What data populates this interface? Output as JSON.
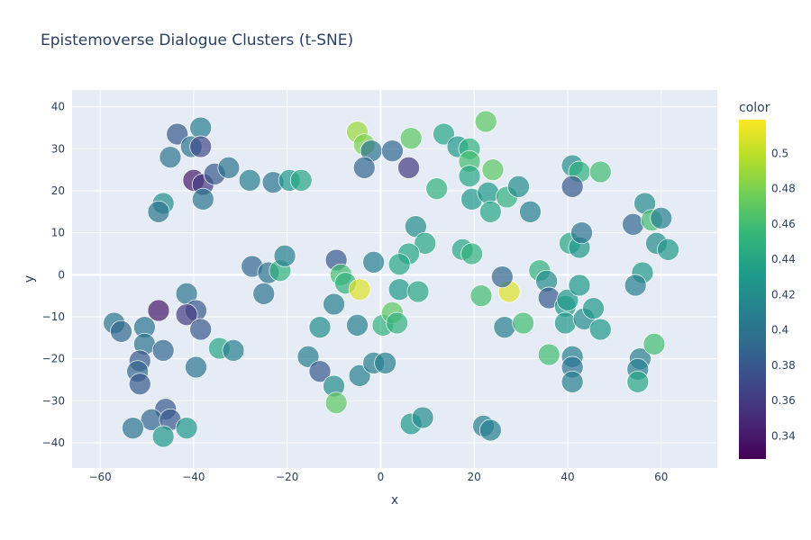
{
  "chart_data": {
    "type": "scatter",
    "title": "Epistemoverse Dialogue Clusters (t-SNE)",
    "xlabel": "x",
    "ylabel": "y",
    "xlim": [
      -66,
      72
    ],
    "ylim": [
      -46,
      44
    ],
    "x_ticks": [
      -60,
      -40,
      -20,
      0,
      20,
      40,
      60
    ],
    "x_tick_labels": [
      "−60",
      "−40",
      "−20",
      "0",
      "20",
      "40",
      "60"
    ],
    "y_ticks": [
      -40,
      -30,
      -20,
      -10,
      0,
      10,
      20,
      30,
      40
    ],
    "y_tick_labels": [
      "−40",
      "−30",
      "−20",
      "−10",
      "0",
      "10",
      "20",
      "30",
      "40"
    ],
    "grid": true,
    "colorscale": "Viridis",
    "colorbar": {
      "title": "color",
      "range": [
        0.327,
        0.519
      ],
      "ticks": [
        0.34,
        0.36,
        0.38,
        0.4,
        0.42,
        0.44,
        0.46,
        0.48,
        0.5
      ],
      "tick_labels": [
        "0.34",
        "0.36",
        "0.38",
        "0.4",
        "0.42",
        "0.44",
        "0.46",
        "0.48",
        "0.5"
      ]
    },
    "points": [
      {
        "x": -43.5,
        "y": 33.5,
        "c": 0.38
      },
      {
        "x": -40.5,
        "y": 30.5,
        "c": 0.4
      },
      {
        "x": -38.5,
        "y": 35,
        "c": 0.41
      },
      {
        "x": -38.5,
        "y": 30.5,
        "c": 0.37
      },
      {
        "x": -45,
        "y": 28,
        "c": 0.4
      },
      {
        "x": -40,
        "y": 22.5,
        "c": 0.34
      },
      {
        "x": -38,
        "y": 21.5,
        "c": 0.36
      },
      {
        "x": -35.5,
        "y": 24,
        "c": 0.38
      },
      {
        "x": -32.5,
        "y": 25.5,
        "c": 0.4
      },
      {
        "x": -38,
        "y": 18,
        "c": 0.4
      },
      {
        "x": -46.5,
        "y": 17,
        "c": 0.42
      },
      {
        "x": -47.5,
        "y": 15,
        "c": 0.4
      },
      {
        "x": -28,
        "y": 22.5,
        "c": 0.41
      },
      {
        "x": -23,
        "y": 22,
        "c": 0.4
      },
      {
        "x": -19.5,
        "y": 22.5,
        "c": 0.43
      },
      {
        "x": -17,
        "y": 22.5,
        "c": 0.44
      },
      {
        "x": -27.5,
        "y": 2,
        "c": 0.39
      },
      {
        "x": -24,
        "y": 0.5,
        "c": 0.4
      },
      {
        "x": -21.5,
        "y": 1,
        "c": 0.45
      },
      {
        "x": -20.5,
        "y": 4.5,
        "c": 0.41
      },
      {
        "x": -25,
        "y": -4.5,
        "c": 0.4
      },
      {
        "x": -47.5,
        "y": -8.5,
        "c": 0.34
      },
      {
        "x": -41.5,
        "y": -4.5,
        "c": 0.4
      },
      {
        "x": -39.5,
        "y": -8.5,
        "c": 0.38
      },
      {
        "x": -41.5,
        "y": -9.5,
        "c": 0.36
      },
      {
        "x": -38.5,
        "y": -13,
        "c": 0.38
      },
      {
        "x": -57,
        "y": -11.5,
        "c": 0.4
      },
      {
        "x": -55.5,
        "y": -13.5,
        "c": 0.39
      },
      {
        "x": -50.5,
        "y": -12.5,
        "c": 0.4
      },
      {
        "x": -50.5,
        "y": -16.5,
        "c": 0.4
      },
      {
        "x": -46.5,
        "y": -18,
        "c": 0.39
      },
      {
        "x": -51.5,
        "y": -20.5,
        "c": 0.38
      },
      {
        "x": -52,
        "y": -23,
        "c": 0.39
      },
      {
        "x": -51.5,
        "y": -26,
        "c": 0.38
      },
      {
        "x": -34.5,
        "y": -17.5,
        "c": 0.44
      },
      {
        "x": -31.5,
        "y": -18,
        "c": 0.41
      },
      {
        "x": -39.5,
        "y": -22,
        "c": 0.4
      },
      {
        "x": -46,
        "y": -32,
        "c": 0.38
      },
      {
        "x": -49,
        "y": -34.5,
        "c": 0.39
      },
      {
        "x": -45,
        "y": -34.5,
        "c": 0.38
      },
      {
        "x": -53,
        "y": -36.5,
        "c": 0.4
      },
      {
        "x": -46.5,
        "y": -38.5,
        "c": 0.43
      },
      {
        "x": -41.5,
        "y": -36.5,
        "c": 0.43
      },
      {
        "x": -5,
        "y": 34,
        "c": 0.49
      },
      {
        "x": -3.5,
        "y": 31,
        "c": 0.48
      },
      {
        "x": -2,
        "y": 29.5,
        "c": 0.4
      },
      {
        "x": 2.5,
        "y": 29.5,
        "c": 0.39
      },
      {
        "x": -3.5,
        "y": 25.5,
        "c": 0.39
      },
      {
        "x": 6,
        "y": 25.5,
        "c": 0.36
      },
      {
        "x": 6.5,
        "y": 32.5,
        "c": 0.47
      },
      {
        "x": 13.5,
        "y": 33.5,
        "c": 0.44
      },
      {
        "x": 16.5,
        "y": 30.5,
        "c": 0.43
      },
      {
        "x": 19,
        "y": 30,
        "c": 0.45
      },
      {
        "x": 19,
        "y": 27,
        "c": 0.46
      },
      {
        "x": 19,
        "y": 23.5,
        "c": 0.44
      },
      {
        "x": 22.5,
        "y": 36.5,
        "c": 0.47
      },
      {
        "x": 24,
        "y": 25,
        "c": 0.47
      },
      {
        "x": 12,
        "y": 20.5,
        "c": 0.45
      },
      {
        "x": 19.5,
        "y": 18,
        "c": 0.43
      },
      {
        "x": 23,
        "y": 19.5,
        "c": 0.43
      },
      {
        "x": 27,
        "y": 18.5,
        "c": 0.45
      },
      {
        "x": 29.5,
        "y": 21,
        "c": 0.42
      },
      {
        "x": 23.5,
        "y": 15,
        "c": 0.44
      },
      {
        "x": 32,
        "y": 15,
        "c": 0.41
      },
      {
        "x": 7.5,
        "y": 11.5,
        "c": 0.42
      },
      {
        "x": 9.5,
        "y": 7.5,
        "c": 0.44
      },
      {
        "x": 6,
        "y": 5,
        "c": 0.44
      },
      {
        "x": 4,
        "y": 2.5,
        "c": 0.44
      },
      {
        "x": 17.5,
        "y": 6,
        "c": 0.44
      },
      {
        "x": 19.5,
        "y": 5,
        "c": 0.45
      },
      {
        "x": -9.5,
        "y": 3.5,
        "c": 0.38
      },
      {
        "x": -8.5,
        "y": 0,
        "c": 0.46
      },
      {
        "x": -7.5,
        "y": -2,
        "c": 0.45
      },
      {
        "x": -4.5,
        "y": -3.5,
        "c": 0.51
      },
      {
        "x": -1.5,
        "y": 3,
        "c": 0.41
      },
      {
        "x": 4,
        "y": -3.5,
        "c": 0.43
      },
      {
        "x": 8,
        "y": -4,
        "c": 0.44
      },
      {
        "x": -10,
        "y": -7,
        "c": 0.41
      },
      {
        "x": -13,
        "y": -12.5,
        "c": 0.42
      },
      {
        "x": -5,
        "y": -12,
        "c": 0.41
      },
      {
        "x": 0.5,
        "y": -12,
        "c": 0.45
      },
      {
        "x": 2.5,
        "y": -9,
        "c": 0.47
      },
      {
        "x": 3.5,
        "y": -11.5,
        "c": 0.45
      },
      {
        "x": -15.5,
        "y": -19.5,
        "c": 0.41
      },
      {
        "x": -13,
        "y": -23,
        "c": 0.38
      },
      {
        "x": -10,
        "y": -26.5,
        "c": 0.42
      },
      {
        "x": -9.5,
        "y": -30.5,
        "c": 0.47
      },
      {
        "x": -4.5,
        "y": -24,
        "c": 0.41
      },
      {
        "x": -1.5,
        "y": -21,
        "c": 0.41
      },
      {
        "x": 1,
        "y": -21,
        "c": 0.41
      },
      {
        "x": 6.5,
        "y": -35.5,
        "c": 0.43
      },
      {
        "x": 9,
        "y": -34,
        "c": 0.42
      },
      {
        "x": 22,
        "y": -36,
        "c": 0.41
      },
      {
        "x": 23.5,
        "y": -37,
        "c": 0.41
      },
      {
        "x": 21.5,
        "y": -5,
        "c": 0.46
      },
      {
        "x": 27.5,
        "y": -4,
        "c": 0.51
      },
      {
        "x": 26,
        "y": -0.5,
        "c": 0.39
      },
      {
        "x": 26.5,
        "y": -12.5,
        "c": 0.41
      },
      {
        "x": 30.5,
        "y": -11.5,
        "c": 0.46
      },
      {
        "x": 34,
        "y": 1,
        "c": 0.45
      },
      {
        "x": 35.5,
        "y": -1.5,
        "c": 0.42
      },
      {
        "x": 36,
        "y": -5.5,
        "c": 0.38
      },
      {
        "x": 39.5,
        "y": -7.5,
        "c": 0.43
      },
      {
        "x": 39.5,
        "y": -11.5,
        "c": 0.43
      },
      {
        "x": 40,
        "y": -6,
        "c": 0.43
      },
      {
        "x": 36,
        "y": -19,
        "c": 0.46
      },
      {
        "x": 41,
        "y": -19.5,
        "c": 0.41
      },
      {
        "x": 41,
        "y": -22,
        "c": 0.4
      },
      {
        "x": 41,
        "y": -25.5,
        "c": 0.41
      },
      {
        "x": 42.5,
        "y": -2.5,
        "c": 0.43
      },
      {
        "x": 43.5,
        "y": -10.5,
        "c": 0.42
      },
      {
        "x": 45.5,
        "y": -8,
        "c": 0.43
      },
      {
        "x": 47,
        "y": -13,
        "c": 0.43
      },
      {
        "x": 40.5,
        "y": 7.5,
        "c": 0.44
      },
      {
        "x": 42.5,
        "y": 6.5,
        "c": 0.43
      },
      {
        "x": 43,
        "y": 10,
        "c": 0.4
      },
      {
        "x": 41,
        "y": 26,
        "c": 0.42
      },
      {
        "x": 42.5,
        "y": 24.5,
        "c": 0.45
      },
      {
        "x": 47,
        "y": 24.5,
        "c": 0.46
      },
      {
        "x": 41,
        "y": 21,
        "c": 0.38
      },
      {
        "x": 54,
        "y": 12,
        "c": 0.39
      },
      {
        "x": 56.5,
        "y": 17,
        "c": 0.42
      },
      {
        "x": 58,
        "y": 13,
        "c": 0.46
      },
      {
        "x": 60,
        "y": 13.5,
        "c": 0.41
      },
      {
        "x": 59,
        "y": 7.5,
        "c": 0.42
      },
      {
        "x": 61.5,
        "y": 6,
        "c": 0.43
      },
      {
        "x": 56,
        "y": 0.5,
        "c": 0.43
      },
      {
        "x": 54.5,
        "y": -2.5,
        "c": 0.41
      },
      {
        "x": 55.5,
        "y": -20,
        "c": 0.41
      },
      {
        "x": 55,
        "y": -22.5,
        "c": 0.41
      },
      {
        "x": 55,
        "y": -25.5,
        "c": 0.44
      },
      {
        "x": 58.5,
        "y": -16.5,
        "c": 0.46
      }
    ]
  }
}
